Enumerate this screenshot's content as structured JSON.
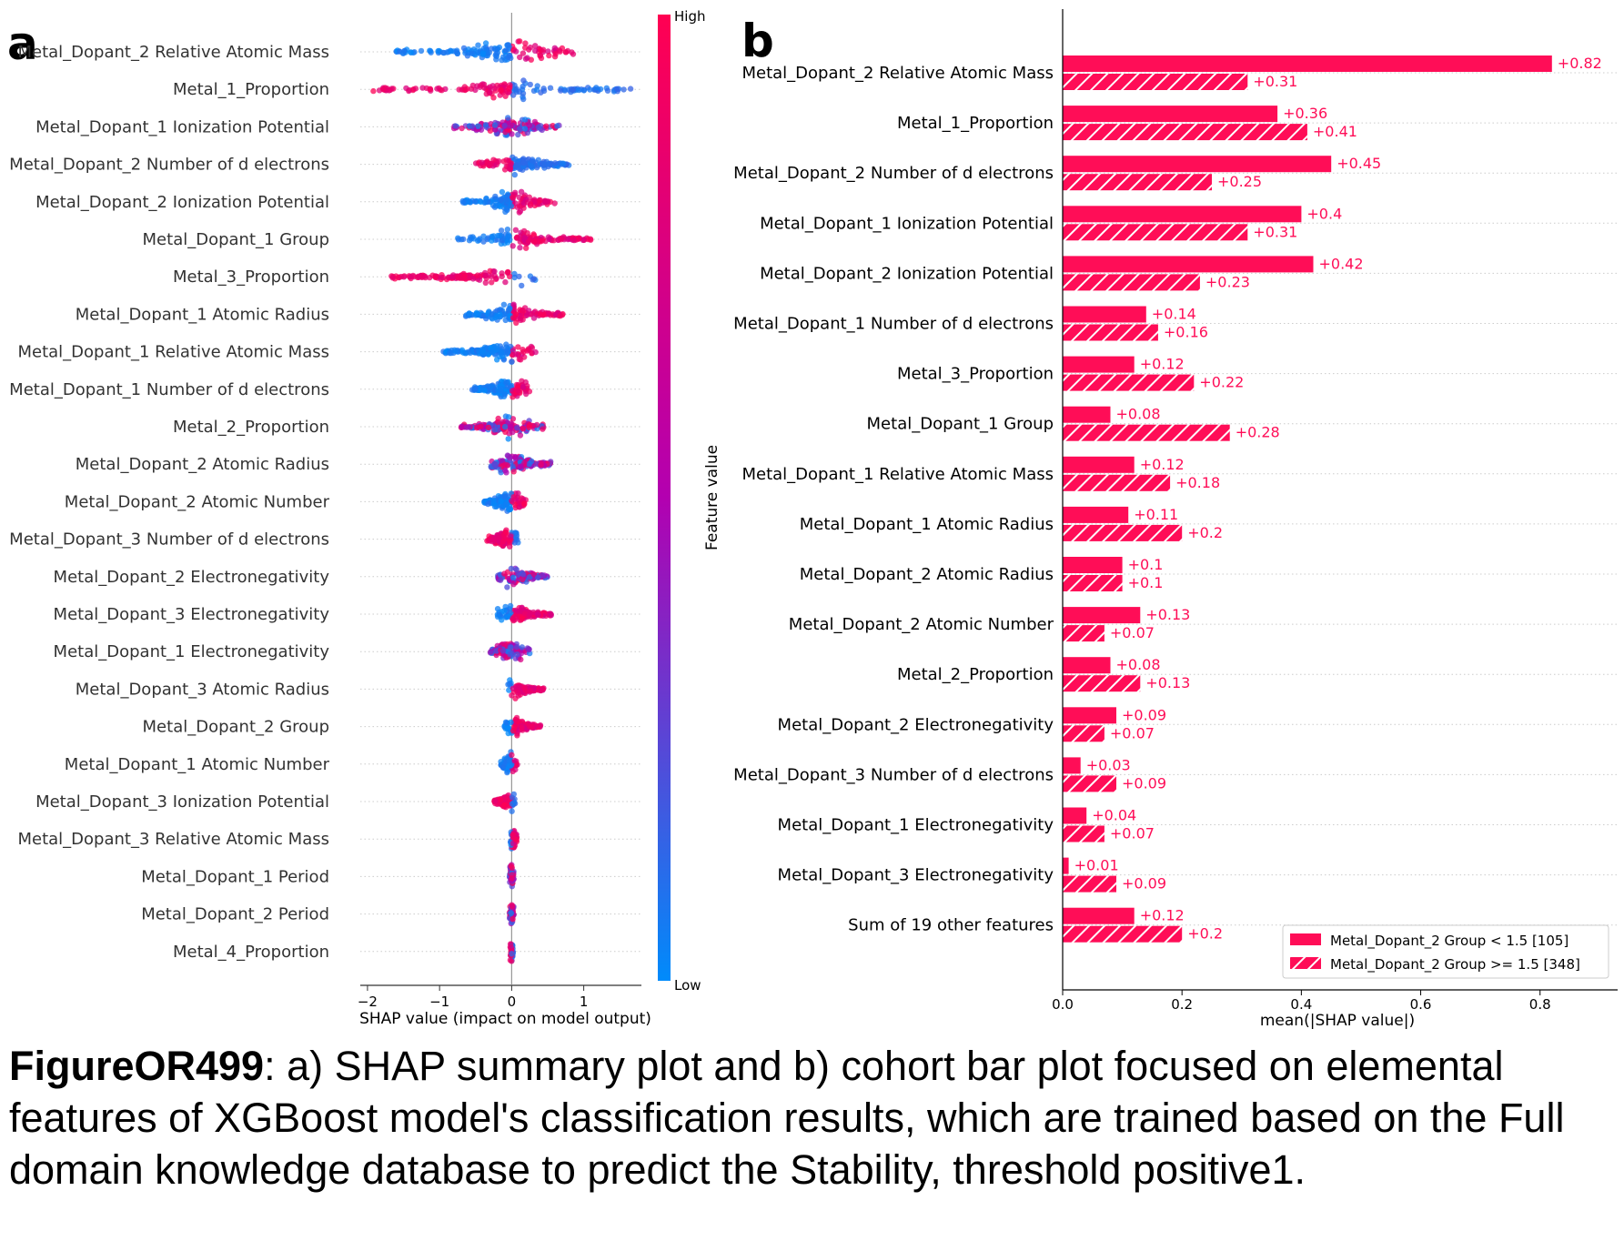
{
  "panel_a_letter": "a",
  "panel_b_letter": "b",
  "caption": {
    "id": "FigureOR499",
    "text": ": a) SHAP summary plot and b) cohort bar plot focused on elemental features of XGBoost model's classification results, which are trained based on the Full domain knowledge database to predict the Stability, threshold positive1."
  },
  "colors": {
    "high": "#ff0052",
    "low": "#008bfb",
    "mid": "#8a2be2",
    "bar": "#ff0d57"
  },
  "chart_data": [
    {
      "type": "scatter",
      "subtype": "shap-beeswarm",
      "xlabel": "SHAP value (impact on model output)",
      "ylabel": "",
      "xlim": [
        -2.1,
        1.8
      ],
      "xticks": [
        -2,
        -1,
        0,
        1
      ],
      "xtick_labels": [
        "−2",
        "−1",
        "0",
        "1"
      ],
      "colorbar": {
        "label": "Feature value",
        "high_label": "High",
        "low_label": "Low"
      },
      "features": [
        {
          "name": "Metal_Dopant_2 Relative Atomic Mass",
          "min": -1.6,
          "max": 0.9,
          "low_side": "negative",
          "spread": 0.55
        },
        {
          "name": "Metal_1_Proportion",
          "min": -1.95,
          "max": 1.65,
          "low_side": "positive",
          "spread": 0.45
        },
        {
          "name": "Metal_Dopant_1 Ionization Potential",
          "min": -0.8,
          "max": 0.7,
          "low_side": "mixed",
          "spread": 0.35
        },
        {
          "name": "Metal_Dopant_2 Number of d electrons",
          "min": -0.5,
          "max": 0.8,
          "low_side": "positive",
          "spread": 0.3
        },
        {
          "name": "Metal_Dopant_2 Ionization Potential",
          "min": -0.7,
          "max": 0.6,
          "low_side": "negative",
          "spread": 0.3
        },
        {
          "name": "Metal_Dopant_1 Group",
          "min": -0.75,
          "max": 1.1,
          "low_side": "negative",
          "spread": 0.35
        },
        {
          "name": "Metal_3_Proportion",
          "min": -1.7,
          "max": 0.35,
          "low_side": "positive",
          "spread": 0.4
        },
        {
          "name": "Metal_Dopant_1 Atomic Radius",
          "min": -0.7,
          "max": 0.75,
          "low_side": "negative",
          "spread": 0.3
        },
        {
          "name": "Metal_Dopant_1 Relative Atomic Mass",
          "min": -0.95,
          "max": 0.35,
          "low_side": "negative",
          "spread": 0.35
        },
        {
          "name": "Metal_Dopant_1 Number of d electrons",
          "min": -0.55,
          "max": 0.25,
          "low_side": "negative",
          "spread": 0.25
        },
        {
          "name": "Metal_2_Proportion",
          "min": -0.7,
          "max": 0.45,
          "low_side": "mixed",
          "spread": 0.3
        },
        {
          "name": "Metal_Dopant_2 Atomic Radius",
          "min": -0.3,
          "max": 0.55,
          "low_side": "mixed",
          "spread": 0.25
        },
        {
          "name": "Metal_Dopant_2 Atomic Number",
          "min": -0.38,
          "max": 0.2,
          "low_side": "negative",
          "spread": 0.2
        },
        {
          "name": "Metal_Dopant_3 Number of d electrons",
          "min": -0.35,
          "max": 0.1,
          "low_side": "positive",
          "spread": 0.2
        },
        {
          "name": "Metal_Dopant_2 Electronegativity",
          "min": -0.2,
          "max": 0.5,
          "low_side": "mixed",
          "spread": 0.2
        },
        {
          "name": "Metal_Dopant_3 Electronegativity",
          "min": -0.2,
          "max": 0.55,
          "low_side": "negative",
          "spread": 0.2
        },
        {
          "name": "Metal_Dopant_1 Electronegativity",
          "min": -0.3,
          "max": 0.25,
          "low_side": "mixed",
          "spread": 0.2
        },
        {
          "name": "Metal_Dopant_3 Atomic Radius",
          "min": -0.05,
          "max": 0.45,
          "low_side": "negative",
          "spread": 0.15
        },
        {
          "name": "Metal_Dopant_2 Group",
          "min": -0.1,
          "max": 0.4,
          "low_side": "negative",
          "spread": 0.15
        },
        {
          "name": "Metal_Dopant_1 Atomic Number",
          "min": -0.15,
          "max": 0.08,
          "low_side": "negative",
          "spread": 0.12
        },
        {
          "name": "Metal_Dopant_3 Ionization Potential",
          "min": -0.25,
          "max": 0.05,
          "low_side": "positive",
          "spread": 0.12
        },
        {
          "name": "Metal_Dopant_3 Relative Atomic Mass",
          "min": -0.02,
          "max": 0.08,
          "low_side": "negative",
          "spread": 0.08
        },
        {
          "name": "Metal_Dopant_1 Period",
          "min": -0.03,
          "max": 0.03,
          "low_side": "mixed",
          "spread": 0.06
        },
        {
          "name": "Metal_Dopant_2 Period",
          "min": -0.03,
          "max": 0.03,
          "low_side": "mixed",
          "spread": 0.06
        },
        {
          "name": "Metal_4_Proportion",
          "min": -0.02,
          "max": 0.02,
          "low_side": "positive",
          "spread": 0.05
        }
      ]
    },
    {
      "type": "bar",
      "orientation": "horizontal",
      "xlabel": "mean(|SHAP value|)",
      "xlim": [
        0,
        0.93
      ],
      "xticks": [
        0.0,
        0.2,
        0.4,
        0.6,
        0.8
      ],
      "xtick_labels": [
        "0.0",
        "0.2",
        "0.4",
        "0.6",
        "0.8"
      ],
      "categories": [
        "Metal_Dopant_2 Relative Atomic Mass",
        "Metal_1_Proportion",
        "Metal_Dopant_2 Number of d electrons",
        "Metal_Dopant_1 Ionization Potential",
        "Metal_Dopant_2 Ionization Potential",
        "Metal_Dopant_1 Number of d electrons",
        "Metal_3_Proportion",
        "Metal_Dopant_1 Group",
        "Metal_Dopant_1 Relative Atomic Mass",
        "Metal_Dopant_1 Atomic Radius",
        "Metal_Dopant_2 Atomic Radius",
        "Metal_Dopant_2 Atomic Number",
        "Metal_2_Proportion",
        "Metal_Dopant_2 Electronegativity",
        "Metal_Dopant_3 Number of d electrons",
        "Metal_Dopant_1 Electronegativity",
        "Metal_Dopant_3 Electronegativity",
        "Sum of 19 other features"
      ],
      "series": [
        {
          "name": "Metal_Dopant_2 Group < 1.5 [105]",
          "pattern": "solid",
          "values": [
            0.82,
            0.36,
            0.45,
            0.4,
            0.42,
            0.14,
            0.12,
            0.08,
            0.12,
            0.11,
            0.1,
            0.13,
            0.08,
            0.09,
            0.03,
            0.04,
            0.01,
            0.12
          ],
          "labels": [
            "+0.82",
            "+0.36",
            "+0.45",
            "+0.4",
            "+0.42",
            "+0.14",
            "+0.12",
            "+0.08",
            "+0.12",
            "+0.11",
            "+0.1",
            "+0.13",
            "+0.08",
            "+0.09",
            "+0.03",
            "+0.04",
            "+0.01",
            "+0.12"
          ]
        },
        {
          "name": "Metal_Dopant_2 Group >= 1.5 [348]",
          "pattern": "hatched",
          "values": [
            0.31,
            0.41,
            0.25,
            0.31,
            0.23,
            0.16,
            0.22,
            0.28,
            0.18,
            0.2,
            0.1,
            0.07,
            0.13,
            0.07,
            0.09,
            0.07,
            0.09,
            0.2
          ],
          "labels": [
            "+0.31",
            "+0.41",
            "+0.25",
            "+0.31",
            "+0.23",
            "+0.16",
            "+0.22",
            "+0.28",
            "+0.18",
            "+0.2",
            "+0.1",
            "+0.07",
            "+0.13",
            "+0.07",
            "+0.09",
            "+0.07",
            "+0.09",
            "+0.2"
          ]
        }
      ],
      "legend_position": "bottom-right"
    }
  ]
}
